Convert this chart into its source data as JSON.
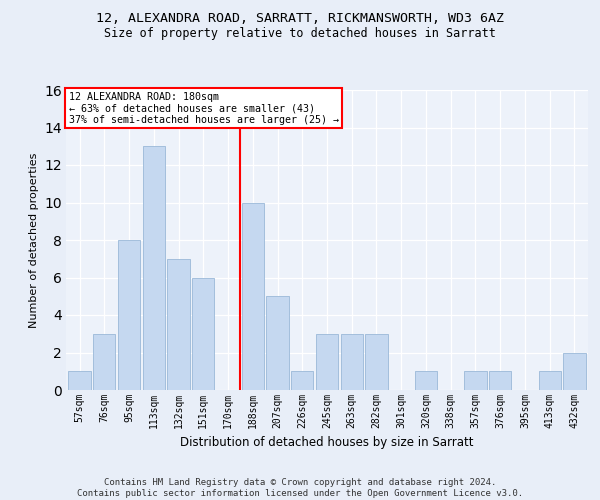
{
  "title_line1": "12, ALEXANDRA ROAD, SARRATT, RICKMANSWORTH, WD3 6AZ",
  "title_line2": "Size of property relative to detached houses in Sarratt",
  "xlabel": "Distribution of detached houses by size in Sarratt",
  "ylabel": "Number of detached properties",
  "categories": [
    "57sqm",
    "76sqm",
    "95sqm",
    "113sqm",
    "132sqm",
    "151sqm",
    "170sqm",
    "188sqm",
    "207sqm",
    "226sqm",
    "245sqm",
    "263sqm",
    "282sqm",
    "301sqm",
    "320sqm",
    "338sqm",
    "357sqm",
    "376sqm",
    "395sqm",
    "413sqm",
    "432sqm"
  ],
  "values": [
    1,
    3,
    8,
    13,
    7,
    6,
    0,
    10,
    5,
    1,
    3,
    3,
    3,
    0,
    1,
    0,
    1,
    1,
    0,
    1,
    2
  ],
  "bar_color": "#c5d8f0",
  "bar_edge_color": "#9ab8d8",
  "vline_x_index": 7,
  "vline_color": "red",
  "annotation_line1": "12 ALEXANDRA ROAD: 180sqm",
  "annotation_line2": "← 63% of detached houses are smaller (43)",
  "annotation_line3": "37% of semi-detached houses are larger (25) →",
  "annotation_box_color": "white",
  "annotation_box_edge_color": "red",
  "ylim": [
    0,
    16
  ],
  "yticks": [
    0,
    2,
    4,
    6,
    8,
    10,
    12,
    14,
    16
  ],
  "footer": "Contains HM Land Registry data © Crown copyright and database right 2024.\nContains public sector information licensed under the Open Government Licence v3.0.",
  "bg_color": "#e8eef8",
  "plot_bg_color": "#edf2fa",
  "title_fontsize": 9.5,
  "subtitle_fontsize": 8.5,
  "ylabel_fontsize": 8,
  "xlabel_fontsize": 8.5,
  "tick_fontsize": 7,
  "footer_fontsize": 6.5
}
